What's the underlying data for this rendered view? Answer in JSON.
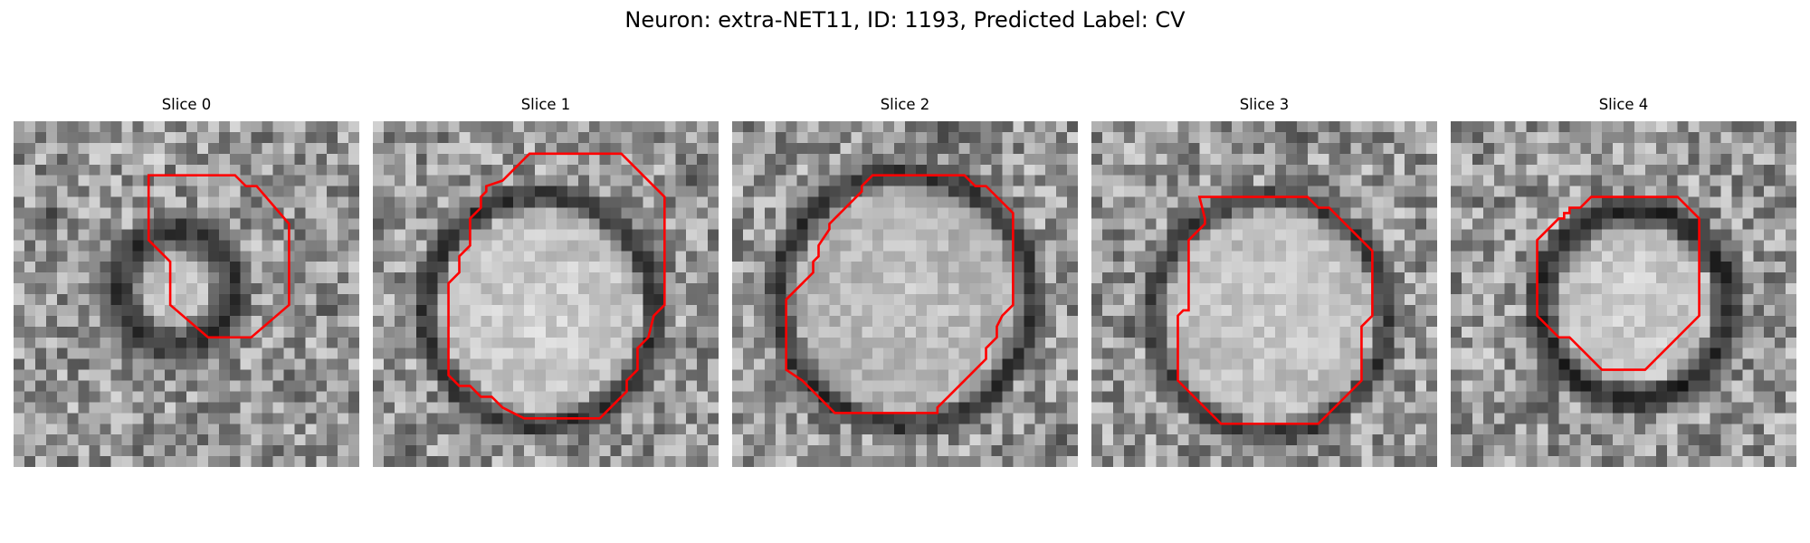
{
  "figure": {
    "title": "Neuron: extra-NET11, ID: 1193, Predicted Label: CV"
  },
  "slices": [
    {
      "title": "Slice 0"
    },
    {
      "title": "Slice 1"
    },
    {
      "title": "Slice 2"
    },
    {
      "title": "Slice 3"
    },
    {
      "title": "Slice 4"
    }
  ],
  "colors": {
    "contour": "#ff0000",
    "background": "#ffffff"
  }
}
